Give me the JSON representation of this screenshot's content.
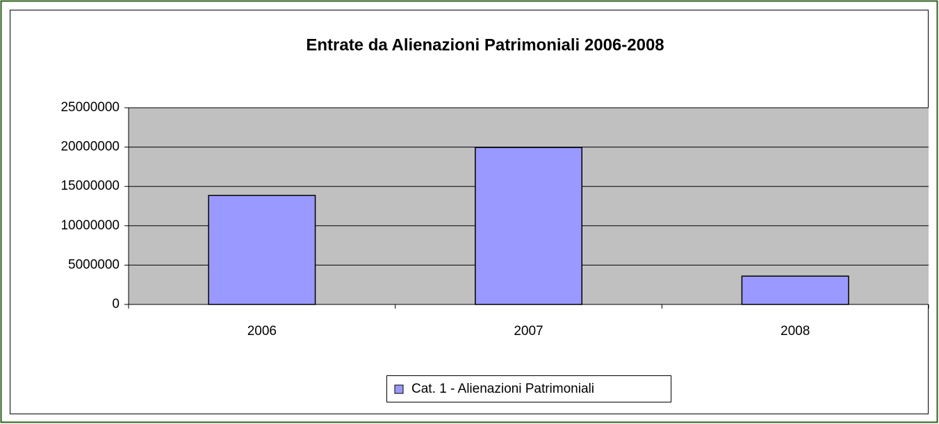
{
  "chart_data": {
    "type": "bar",
    "title": "Entrate da Alienazioni Patrimoniali 2006-2008",
    "categories": [
      "2006",
      "2007",
      "2008"
    ],
    "series": [
      {
        "name": "Cat. 1 - Alienazioni Patrimoniali",
        "color": "#9999ff",
        "values": [
          13850000,
          19950000,
          3600000
        ]
      }
    ],
    "ylim": [
      0,
      25000000
    ],
    "yticks": [
      0,
      5000000,
      10000000,
      15000000,
      20000000,
      25000000
    ],
    "grid": true,
    "legend": "bottom"
  }
}
